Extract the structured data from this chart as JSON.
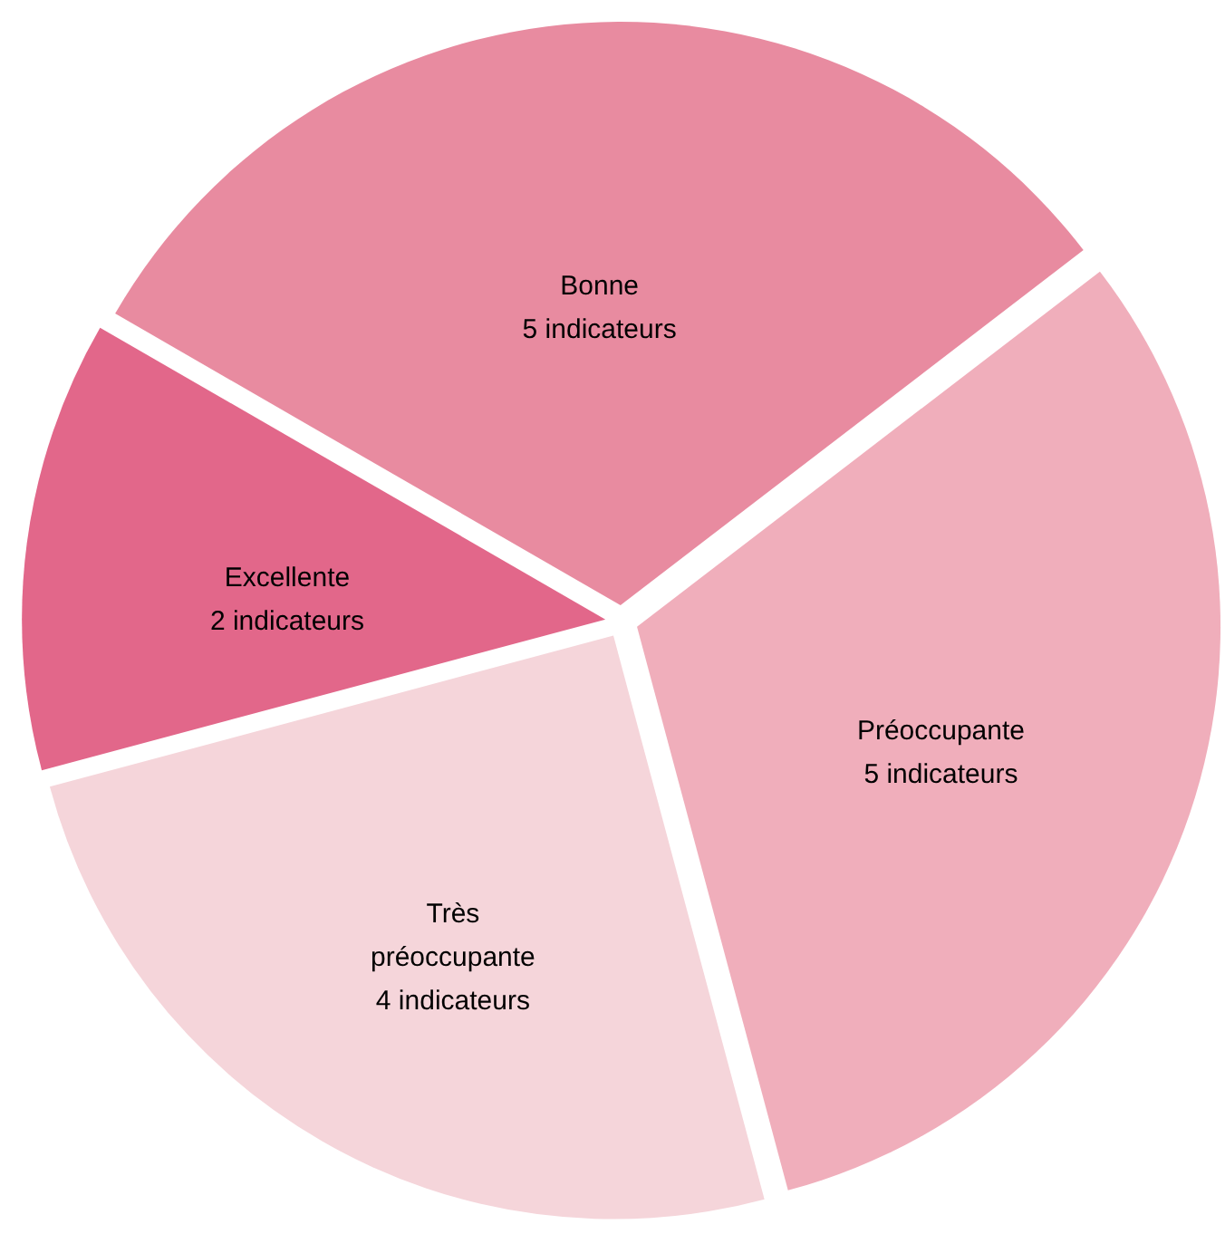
{
  "chart_data": {
    "type": "pie",
    "categories": [
      "Bonne",
      "Préoccupante",
      "Très préoccupante",
      "Excellente"
    ],
    "values": [
      5,
      5,
      4,
      2
    ],
    "value_labels": [
      "5 indicateurs",
      "5 indicateurs",
      "4 indicateurs",
      "2 indicateurs"
    ],
    "colors": [
      "#e88ba0",
      "#f0aebb",
      "#f5d5da",
      "#e2678a"
    ]
  }
}
